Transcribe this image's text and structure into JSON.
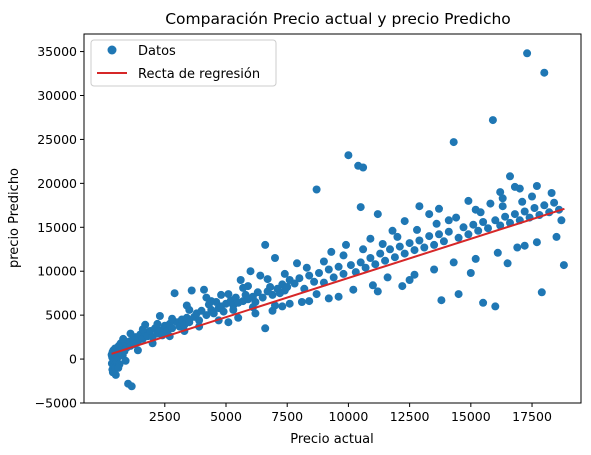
{
  "chart_data": {
    "type": "scatter",
    "title": "Comparación Precio actual y precio Predicho",
    "xlabel": "Precio actual",
    "ylabel": "precio Predicho",
    "xlim": [
      -800,
      19500
    ],
    "ylim": [
      -5000,
      37000
    ],
    "xticks": [
      2500,
      5000,
      7500,
      10000,
      12500,
      15000,
      17500
    ],
    "xtick_labels": [
      "2500",
      "5000",
      "7500",
      "10000",
      "12500",
      "15000",
      "17500"
    ],
    "yticks": [
      -5000,
      0,
      5000,
      10000,
      15000,
      20000,
      25000,
      30000,
      35000
    ],
    "ytick_labels": [
      "−5000",
      "0",
      "5000",
      "10000",
      "15000",
      "20000",
      "25000",
      "30000",
      "35000"
    ],
    "grid": false,
    "legend": {
      "placement": "top-left",
      "entries": [
        {
          "label": "Datos",
          "kind": "marker",
          "color": "#1f77b4"
        },
        {
          "label": "Recta de regresión",
          "kind": "line",
          "color": "#d62728"
        }
      ]
    },
    "series": [
      {
        "name": "Datos",
        "kind": "scatter",
        "color": "#1f77b4",
        "points": [
          [
            326,
            500
          ],
          [
            340,
            -500
          ],
          [
            350,
            200
          ],
          [
            360,
            -1200
          ],
          [
            370,
            800
          ],
          [
            380,
            -1500
          ],
          [
            390,
            300
          ],
          [
            400,
            1000
          ],
          [
            420,
            -800
          ],
          [
            430,
            600
          ],
          [
            450,
            -200
          ],
          [
            470,
            1200
          ],
          [
            480,
            -1000
          ],
          [
            500,
            400
          ],
          [
            520,
            900
          ],
          [
            540,
            -300
          ],
          [
            560,
            1300
          ],
          [
            580,
            200
          ],
          [
            600,
            700
          ],
          [
            620,
            1500
          ],
          [
            650,
            -600
          ],
          [
            680,
            1000
          ],
          [
            700,
            1800
          ],
          [
            720,
            600
          ],
          [
            750,
            1200
          ],
          [
            780,
            400
          ],
          [
            800,
            1600
          ],
          [
            850,
            900
          ],
          [
            900,
            1800
          ],
          [
            950,
            1300
          ],
          [
            1000,
            -2800
          ],
          [
            1050,
            2000
          ],
          [
            1100,
            1500
          ],
          [
            1150,
            -3100
          ],
          [
            1200,
            2200
          ],
          [
            1250,
            1700
          ],
          [
            1300,
            2500
          ],
          [
            1400,
            2000
          ],
          [
            1500,
            2800
          ],
          [
            1600,
            2300
          ],
          [
            1700,
            3000
          ],
          [
            1800,
            2600
          ],
          [
            1900,
            3200
          ],
          [
            2000,
            2500
          ],
          [
            2100,
            3500
          ],
          [
            2200,
            2900
          ],
          [
            2300,
            3300
          ],
          [
            2400,
            2700
          ],
          [
            2500,
            3800
          ],
          [
            2600,
            3200
          ],
          [
            2700,
            4000
          ],
          [
            2800,
            3500
          ],
          [
            2900,
            7500
          ],
          [
            3000,
            4200
          ],
          [
            3100,
            3700
          ],
          [
            3200,
            4500
          ],
          [
            3300,
            3900
          ],
          [
            3400,
            4700
          ],
          [
            3500,
            4200
          ],
          [
            3600,
            7800
          ],
          [
            3700,
            4800
          ],
          [
            3800,
            5200
          ],
          [
            3900,
            4400
          ],
          [
            4000,
            5500
          ],
          [
            4100,
            7900
          ],
          [
            4200,
            5000
          ],
          [
            4300,
            6200
          ],
          [
            4400,
            5600
          ],
          [
            4500,
            5200
          ],
          [
            4600,
            6500
          ],
          [
            4700,
            5800
          ],
          [
            4800,
            6000
          ],
          [
            4900,
            5400
          ],
          [
            5000,
            6300
          ],
          [
            5100,
            4200
          ],
          [
            5200,
            6700
          ],
          [
            5300,
            6100
          ],
          [
            5400,
            7000
          ],
          [
            5500,
            6400
          ],
          [
            5600,
            9000
          ],
          [
            5700,
            6600
          ],
          [
            5800,
            7300
          ],
          [
            5900,
            6800
          ],
          [
            6000,
            10000
          ],
          [
            6100,
            7100
          ],
          [
            6200,
            6500
          ],
          [
            6300,
            7600
          ],
          [
            6400,
            9500
          ],
          [
            6500,
            7000
          ],
          [
            6600,
            13000
          ],
          [
            6700,
            7700
          ],
          [
            6800,
            8200
          ],
          [
            6900,
            7300
          ],
          [
            7000,
            11500
          ],
          [
            7100,
            8000
          ],
          [
            7200,
            7500
          ],
          [
            7300,
            8500
          ],
          [
            7400,
            7800
          ],
          [
            7500,
            8200
          ],
          [
            7600,
            9000
          ],
          [
            7800,
            8600
          ],
          [
            8000,
            9200
          ],
          [
            8200,
            8000
          ],
          [
            8400,
            9500
          ],
          [
            8600,
            8800
          ],
          [
            8700,
            19300
          ],
          [
            8800,
            9800
          ],
          [
            9000,
            8700
          ],
          [
            9200,
            10200
          ],
          [
            9400,
            9300
          ],
          [
            9600,
            10500
          ],
          [
            9800,
            9700
          ],
          [
            10000,
            23200
          ],
          [
            10100,
            10700
          ],
          [
            10300,
            9900
          ],
          [
            10400,
            22000
          ],
          [
            10500,
            17300
          ],
          [
            10500,
            11000
          ],
          [
            10600,
            21800
          ],
          [
            10700,
            10400
          ],
          [
            10900,
            11500
          ],
          [
            11100,
            10800
          ],
          [
            11300,
            12000
          ],
          [
            11500,
            11200
          ],
          [
            11700,
            12500
          ],
          [
            11900,
            11600
          ],
          [
            12100,
            12800
          ],
          [
            12300,
            12000
          ],
          [
            12500,
            13200
          ],
          [
            12700,
            12400
          ],
          [
            12900,
            13500
          ],
          [
            13100,
            12700
          ],
          [
            13300,
            14000
          ],
          [
            13500,
            13000
          ],
          [
            13700,
            14200
          ],
          [
            13900,
            13400
          ],
          [
            14100,
            14500
          ],
          [
            14300,
            24700
          ],
          [
            14500,
            13800
          ],
          [
            14700,
            15000
          ],
          [
            14900,
            14200
          ],
          [
            15100,
            15300
          ],
          [
            15300,
            14600
          ],
          [
            15500,
            15600
          ],
          [
            15700,
            14900
          ],
          [
            15900,
            27200
          ],
          [
            16000,
            15800
          ],
          [
            16200,
            15200
          ],
          [
            16400,
            16200
          ],
          [
            16600,
            15500
          ],
          [
            16800,
            16500
          ],
          [
            17000,
            15800
          ],
          [
            17200,
            16800
          ],
          [
            17300,
            34800
          ],
          [
            17400,
            16100
          ],
          [
            17600,
            17200
          ],
          [
            17800,
            16400
          ],
          [
            18000,
            32600
          ],
          [
            18000,
            17500
          ],
          [
            18200,
            16700
          ],
          [
            18400,
            17800
          ],
          [
            18600,
            17000
          ],
          [
            18800,
            10700
          ],
          [
            15500,
            6400
          ],
          [
            16000,
            6000
          ],
          [
            17900,
            7600
          ],
          [
            14500,
            7400
          ],
          [
            13800,
            6700
          ],
          [
            11200,
            7700
          ],
          [
            12200,
            8300
          ],
          [
            9200,
            6900
          ],
          [
            8100,
            6500
          ],
          [
            7300,
            6000
          ],
          [
            6900,
            5500
          ],
          [
            6100,
            5900
          ],
          [
            5300,
            5600
          ],
          [
            6600,
            3500
          ],
          [
            7600,
            6300
          ],
          [
            8700,
            7400
          ],
          [
            10200,
            7900
          ],
          [
            11600,
            9300
          ],
          [
            12700,
            9600
          ],
          [
            13500,
            10200
          ],
          [
            14300,
            11000
          ],
          [
            15200,
            11400
          ],
          [
            16100,
            12100
          ],
          [
            16900,
            12700
          ],
          [
            17700,
            13300
          ],
          [
            18500,
            13900
          ],
          [
            14900,
            18000
          ],
          [
            16200,
            19000
          ],
          [
            17000,
            19400
          ],
          [
            17700,
            19700
          ],
          [
            16600,
            20800
          ],
          [
            16300,
            18300
          ],
          [
            12900,
            17400
          ],
          [
            13700,
            17100
          ],
          [
            11200,
            16500
          ],
          [
            15200,
            17000
          ],
          [
            4200,
            7000
          ],
          [
            3400,
            6100
          ],
          [
            4800,
            7300
          ],
          [
            5700,
            8100
          ],
          [
            2300,
            4900
          ],
          [
            1700,
            3900
          ],
          [
            7900,
            10900
          ],
          [
            9300,
            12200
          ],
          [
            10900,
            13700
          ],
          [
            9900,
            13000
          ],
          [
            12300,
            15700
          ],
          [
            11800,
            14600
          ],
          [
            13300,
            16500
          ],
          [
            14100,
            15800
          ],
          [
            15800,
            17700
          ],
          [
            16800,
            19600
          ],
          [
            17500,
            18500
          ],
          [
            18300,
            18900
          ],
          [
            18700,
            15800
          ],
          [
            17200,
            12900
          ],
          [
            16500,
            10900
          ],
          [
            15000,
            9800
          ],
          [
            12500,
            9000
          ],
          [
            11000,
            8400
          ],
          [
            9600,
            7100
          ],
          [
            8400,
            6600
          ],
          [
            7000,
            6100
          ],
          [
            6200,
            5200
          ],
          [
            5500,
            4700
          ],
          [
            4700,
            4400
          ],
          [
            3900,
            3700
          ],
          [
            3300,
            3200
          ],
          [
            2700,
            2600
          ],
          [
            2000,
            1800
          ],
          [
            1400,
            1000
          ],
          [
            900,
            -200
          ],
          [
            600,
            -1000
          ],
          [
            500,
            -1800
          ],
          [
            800,
            2300
          ],
          [
            1100,
            2900
          ],
          [
            1600,
            3400
          ],
          [
            2200,
            4000
          ],
          [
            2800,
            4600
          ],
          [
            3500,
            5600
          ],
          [
            4400,
            6600
          ],
          [
            5100,
            7400
          ],
          [
            5900,
            8300
          ],
          [
            6700,
            9100
          ],
          [
            7400,
            9700
          ],
          [
            8300,
            10400
          ],
          [
            9000,
            11100
          ],
          [
            9800,
            11800
          ],
          [
            10600,
            12500
          ],
          [
            11400,
            13100
          ],
          [
            12000,
            13900
          ],
          [
            12800,
            14700
          ],
          [
            13600,
            15400
          ],
          [
            14400,
            16100
          ],
          [
            15400,
            16700
          ],
          [
            16300,
            17400
          ],
          [
            17100,
            17900
          ]
        ]
      },
      {
        "name": "Recta de regresión",
        "kind": "line",
        "color": "#d62728",
        "points": [
          [
            326,
            600
          ],
          [
            18823,
            17100
          ]
        ]
      }
    ]
  }
}
